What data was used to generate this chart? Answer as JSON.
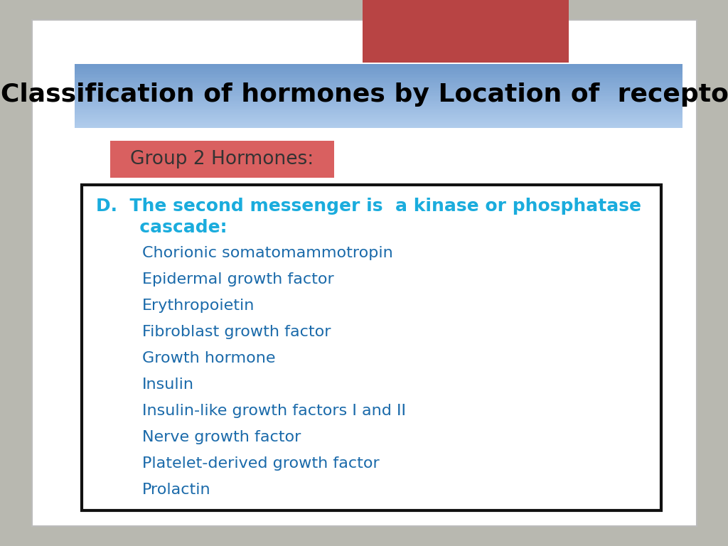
{
  "title": "Classification of hormones by Location of  receptors",
  "title_color": "#000000",
  "group_label": "Group 2 Hormones:",
  "group_label_color": "#333333",
  "group_bg_color": "#d96060",
  "section_header_line1": "D.  The second messenger is  a kinase or phosphatase",
  "section_header_line2": "       cascade:",
  "section_header_color": "#1aacdd",
  "items": [
    "Chorionic somatomammotropin",
    "Epidermal growth factor",
    "Erythropoietin",
    "Fibroblast growth factor",
    "Growth hormone",
    "Insulin",
    "Insulin-like growth factors I and II",
    "Nerve growth factor",
    "Platelet-derived growth factor",
    "Prolactin"
  ],
  "items_color": "#1a6aaa",
  "box_edge_color": "#111111",
  "bg_color": "#b8b8b0",
  "slide_bg_color": "#ffffff",
  "red_rect_color": "#b84444",
  "item_fontsize": 16,
  "header_fontsize": 18,
  "title_fontsize": 26
}
